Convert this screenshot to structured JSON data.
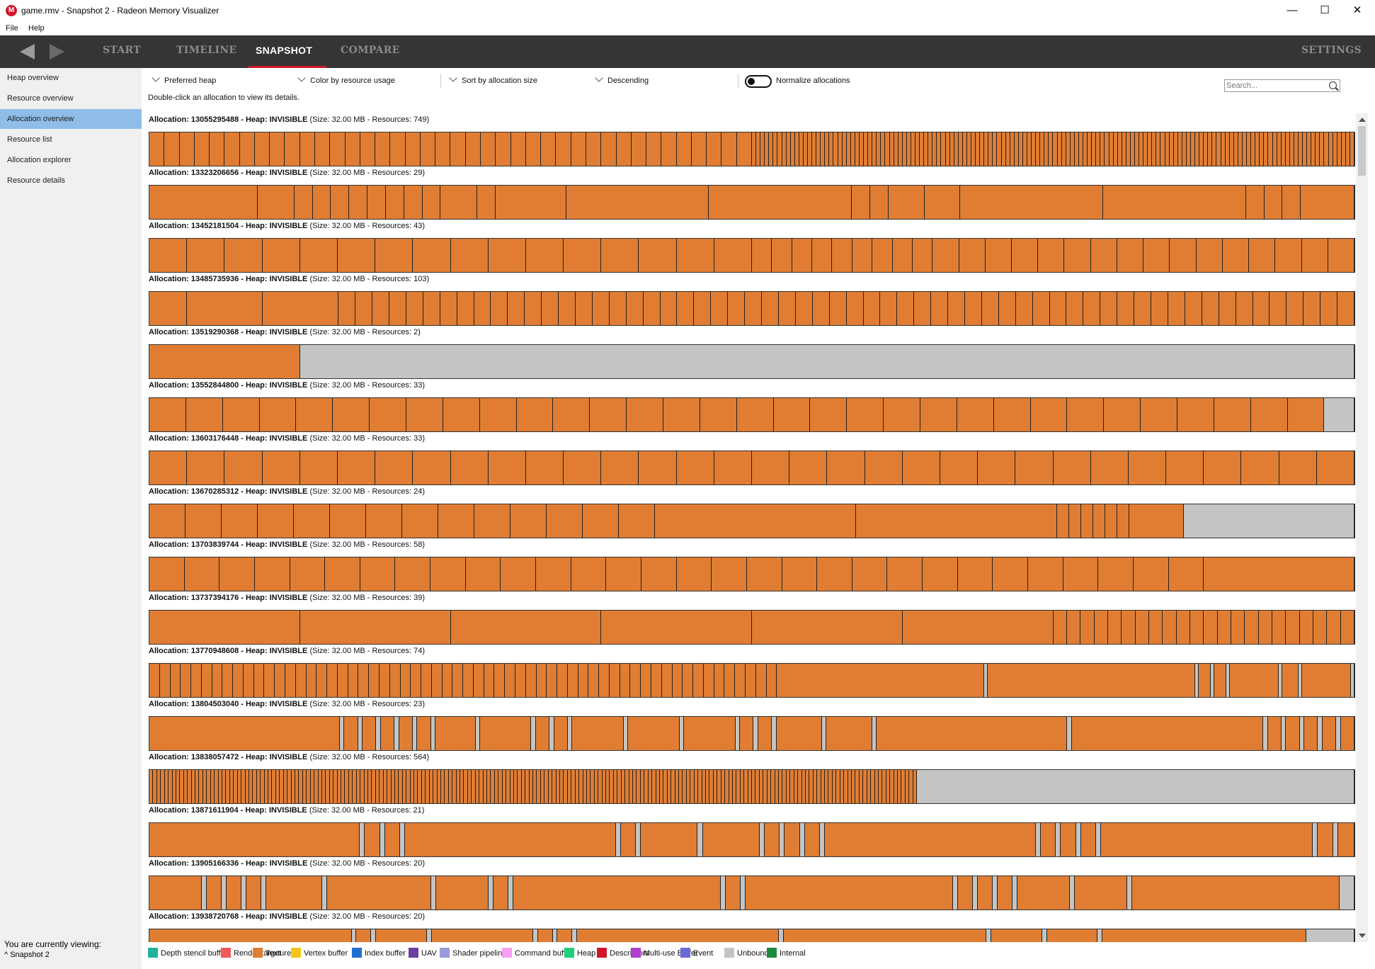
{
  "window": {
    "title": "game.rmv - Snapshot 2 - Radeon Memory Visualizer",
    "icon_letter": "M",
    "minimize": "—",
    "maximize": "☐",
    "close": "✕"
  },
  "menu": {
    "file": "File",
    "help": "Help"
  },
  "nav": {
    "back_icon": "back-arrow-icon",
    "forward_icon": "forward-arrow-icon",
    "tabs": [
      "START",
      "TIMELINE",
      "SNAPSHOT",
      "COMPARE"
    ],
    "active_tab": "SNAPSHOT",
    "settings": "SETTINGS"
  },
  "sidebar": {
    "items": [
      "Heap overview",
      "Resource overview",
      "Allocation overview",
      "Resource list",
      "Allocation explorer",
      "Resource details"
    ],
    "active": "Allocation overview",
    "viewing_label": "You are currently viewing:",
    "viewing_value": "Snapshot 2"
  },
  "controls": {
    "heap": "Preferred heap",
    "color": "Color by resource usage",
    "sort": "Sort by allocation size",
    "order": "Descending",
    "normalize": "Normalize allocations",
    "normalize_on": false,
    "search_placeholder": "Search...",
    "hint": "Double-click an allocation to view its details."
  },
  "allocations": [
    {
      "id": "Allocation: 13055295488 - Heap: INVISIBLE",
      "info": "(Size: 32.00 MB - Resources: 749)"
    },
    {
      "id": "Allocation: 13323206656 - Heap: INVISIBLE",
      "info": "(Size: 32.00 MB - Resources: 29)"
    },
    {
      "id": "Allocation: 13452181504 - Heap: INVISIBLE",
      "info": "(Size: 32.00 MB - Resources: 43)"
    },
    {
      "id": "Allocation: 13485735936 - Heap: INVISIBLE",
      "info": "(Size: 32.00 MB - Resources: 103)"
    },
    {
      "id": "Allocation: 13519290368 - Heap: INVISIBLE",
      "info": "(Size: 32.00 MB - Resources: 2)"
    },
    {
      "id": "Allocation: 13552844800 - Heap: INVISIBLE",
      "info": "(Size: 32.00 MB - Resources: 33)"
    },
    {
      "id": "Allocation: 13603176448 - Heap: INVISIBLE",
      "info": "(Size: 32.00 MB - Resources: 33)"
    },
    {
      "id": "Allocation: 13670285312 - Heap: INVISIBLE",
      "info": "(Size: 32.00 MB - Resources: 24)"
    },
    {
      "id": "Allocation: 13703839744 - Heap: INVISIBLE",
      "info": "(Size: 32.00 MB - Resources: 58)"
    },
    {
      "id": "Allocation: 13737394176 - Heap: INVISIBLE",
      "info": "(Size: 32.00 MB - Resources: 39)"
    },
    {
      "id": "Allocation: 13770948608 - Heap: INVISIBLE",
      "info": "(Size: 32.00 MB - Resources: 74)"
    },
    {
      "id": "Allocation: 13804503040 - Heap: INVISIBLE",
      "info": "(Size: 32.00 MB - Resources: 23)"
    },
    {
      "id": "Allocation: 13838057472 - Heap: INVISIBLE",
      "info": "(Size: 32.00 MB - Resources: 564)"
    },
    {
      "id": "Allocation: 13871611904 - Heap: INVISIBLE",
      "info": "(Size: 32.00 MB - Resources: 21)"
    },
    {
      "id": "Allocation: 13905166336 - Heap: INVISIBLE",
      "info": "(Size: 32.00 MB - Resources: 20)"
    },
    {
      "id": "Allocation: 13938720768 - Heap: INVISIBLE",
      "info": "(Size: 32.00 MB - Resources: 20)"
    }
  ],
  "legend": [
    {
      "label": "Depth stencil buffer",
      "color": "#1fb49a"
    },
    {
      "label": "Render target",
      "color": "#f05a5a"
    },
    {
      "label": "Texture",
      "color": "#e07d33"
    },
    {
      "label": "Vertex buffer",
      "color": "#f5c518"
    },
    {
      "label": "Index buffer",
      "color": "#1f6fd0"
    },
    {
      "label": "UAV",
      "color": "#6a3fa0"
    },
    {
      "label": "Shader pipeline",
      "color": "#9a9ad8"
    },
    {
      "label": "Command buffer",
      "color": "#f5a0f0"
    },
    {
      "label": "Heap",
      "color": "#1fd07a"
    },
    {
      "label": "Descriptors",
      "color": "#d0152b"
    },
    {
      "label": "Multi-use Buffer",
      "color": "#b03fd0"
    },
    {
      "label": "Event",
      "color": "#6a6ad8"
    },
    {
      "label": "Unbound",
      "color": "#c4c4c4"
    },
    {
      "label": "Internal",
      "color": "#1a8a3a"
    }
  ],
  "colors": {
    "texture": "#e07d33",
    "unbound": "#c4c4c4",
    "accent": "#d4152b",
    "selected": "#8fbde8"
  }
}
